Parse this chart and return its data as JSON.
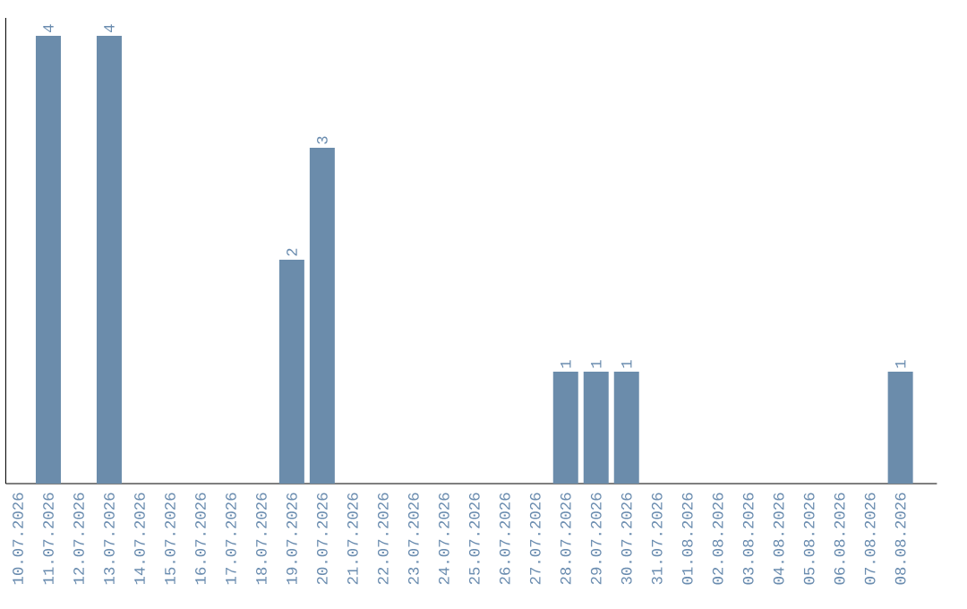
{
  "chart_data": {
    "type": "bar",
    "categories": [
      "10.07.2026",
      "11.07.2026",
      "12.07.2026",
      "13.07.2026",
      "14.07.2026",
      "15.07.2026",
      "16.07.2026",
      "17.07.2026",
      "18.07.2026",
      "19.07.2026",
      "20.07.2026",
      "21.07.2026",
      "22.07.2026",
      "23.07.2026",
      "24.07.2026",
      "25.07.2026",
      "26.07.2026",
      "27.07.2026",
      "28.07.2026",
      "29.07.2026",
      "30.07.2026",
      "31.07.2026",
      "01.08.2026",
      "02.08.2026",
      "03.08.2026",
      "04.08.2026",
      "05.08.2026",
      "06.08.2026",
      "07.08.2026",
      "08.08.2026"
    ],
    "values": [
      0,
      4,
      0,
      4,
      0,
      0,
      0,
      0,
      0,
      2,
      3,
      0,
      0,
      0,
      0,
      0,
      0,
      0,
      1,
      1,
      1,
      0,
      0,
      0,
      0,
      0,
      0,
      0,
      0,
      1
    ],
    "value_labels": [
      null,
      "4",
      null,
      "4",
      null,
      null,
      null,
      null,
      null,
      "2",
      "3",
      null,
      null,
      null,
      null,
      null,
      null,
      null,
      "1",
      "1",
      "1",
      null,
      null,
      null,
      null,
      null,
      null,
      null,
      null,
      "1"
    ],
    "color": "#6b8cab",
    "ylim": [
      0,
      4.16
    ],
    "tick_labels": "x",
    "grid": false
  }
}
